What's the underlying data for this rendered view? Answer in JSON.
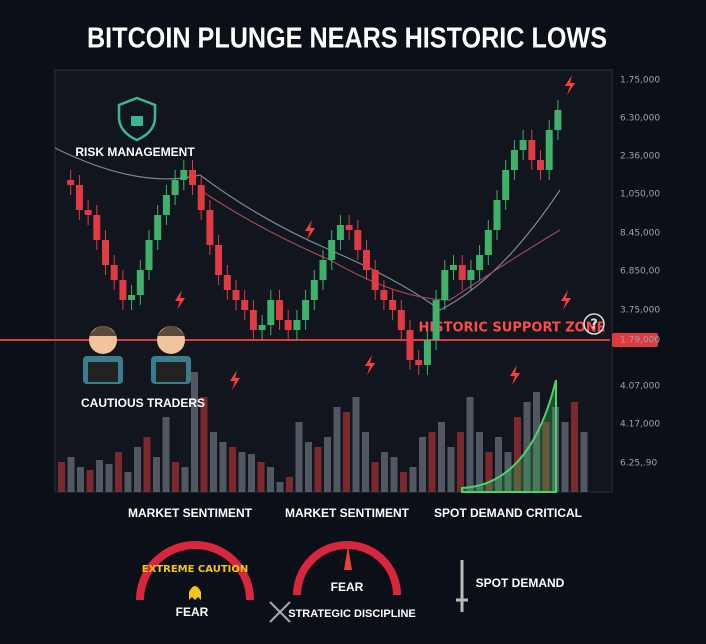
{
  "header": {
    "title": "BITCOIN PLUNGE NEARS HISTORIC LOWS"
  },
  "annotations": {
    "risk_management": "RISK MANAGEMENT",
    "support_zone": "HISTORIC SUPPORT ZONE",
    "help": "?",
    "cautious_traders": "CAUTIOUS TRADERS"
  },
  "price_axis": {
    "labels": [
      "1.75,000",
      "6.30,000",
      "2.36,000",
      "1,050,00",
      "8.45,000",
      "6.850,00",
      "3.75,000",
      "1.79,000",
      "4.07,000",
      "4.17,000",
      "6.25,.90"
    ]
  },
  "panels": [
    {
      "heading": "MARKET SENTIMENT",
      "gauge_label": "EXTREME CAUTION",
      "status": "FEAR"
    },
    {
      "heading": "MARKET SENTIMENT",
      "status": "FEAR",
      "caption": "STRATEGIC DISCIPLINE"
    },
    {
      "heading": "SPOT DEMAND CRITICAL",
      "caption": "SPOT DEMAND"
    }
  ]
}
